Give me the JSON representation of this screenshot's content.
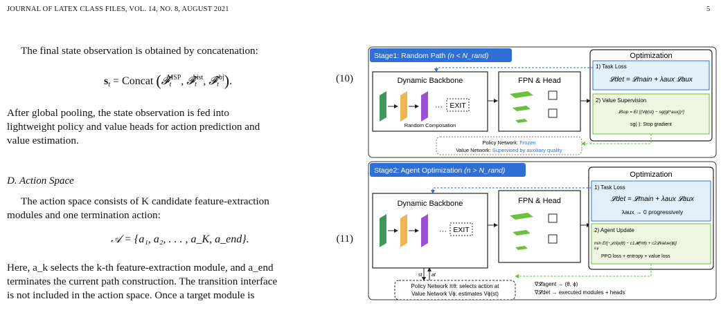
{
  "header": {
    "journal": "JOURNAL OF LATEX CLASS FILES, VOL. 14, NO. 8, AUGUST 2021",
    "page": "5"
  },
  "left": {
    "para1": "The final state observation is obtained by concatenation:",
    "eq10_lhs": "s",
    "eq10_func": "= Concat",
    "eq10_num": "(10)",
    "para2_l1": "After global pooling, the state observation is fed into",
    "para2_l2": "lightweight policy and value heads for action prediction and",
    "para2_l3": "value estimation.",
    "section": "D. Action Space",
    "para3_l1": "The action space consists of K candidate feature-extraction",
    "para3_l2": "modules and one termination action:",
    "eq11_text": "𝒜 = {a₁, a₂, . . . , a_K, a_end}.",
    "eq11_num": "(11)",
    "para4_l1": "Here, a_k selects the k-th feature-extraction module, and a_end",
    "para4_l2": "terminates the current path construction. The transition interface",
    "para4_l3": "is not included in the action space. Once a target module is"
  },
  "figure": {
    "stage1": {
      "title": "Stage1: Random Path",
      "cond": "(n < N_rand)",
      "backbone": "Dynamic Backbone",
      "ellipsis": "···",
      "exit": "EXIT",
      "composition": "Random Composation",
      "fpn": "FPN & Head",
      "opt_title": "Optimization",
      "task_loss": "1) Task Loss",
      "task_eq": "𝓛det = 𝓛main + λaux 𝓛aux",
      "value_sup": "2) Value Supervision",
      "value_eq": "𝓛sup = Et [(Vϕ(st) − sg(gt^aux))²]",
      "stopgrad": "sg(·): Stop gradient",
      "policy_frozen_label": "Policy Network: ",
      "policy_frozen_val": "Frozen",
      "value_sup_label": "Value Network: ",
      "value_sup_val": "Supervised by auxiliary quality"
    },
    "stage2": {
      "title": "Stage2: Agent Optimization",
      "cond": "(n > N_rand)",
      "backbone": "Dynamic Backbone",
      "ellipsis": "···",
      "exit": "EXIT",
      "fpn": "FPN & Head",
      "opt_title": "Optimization",
      "task_loss": "1) Task Loss",
      "task_eq": "𝓛det = 𝓛main + λaux 𝓛aux",
      "lambda_eq": "λaux → 0 progressively",
      "agent_update": "2) Agent Update",
      "agent_eq": "min Et[−𝒥clip(θ) − c1𝓗(πθ) + c2𝓛value(ϕ)]",
      "agent_sub": "θ,ϕ",
      "ppo": "PPO loss + entropy + value loss",
      "policy_line": "Policy Network πθ: selects action at",
      "value_line": "Value Network Vϕ: estimates Vϕ(st)",
      "st_label": "st",
      "at_label": "at",
      "grad1": "∇𝓛agent → (θ, ϕ)",
      "grad2": "∇𝓛det → executed modules + heads"
    },
    "colors": {
      "accent": "#2f6fd6",
      "green": "#6dbf3e",
      "blue_fill": "#e3f0fa",
      "green_fill": "#eef6e2",
      "orange": "#f0b550",
      "purple": "#9b4fd6",
      "darkgreen": "#3f9a5a"
    }
  }
}
